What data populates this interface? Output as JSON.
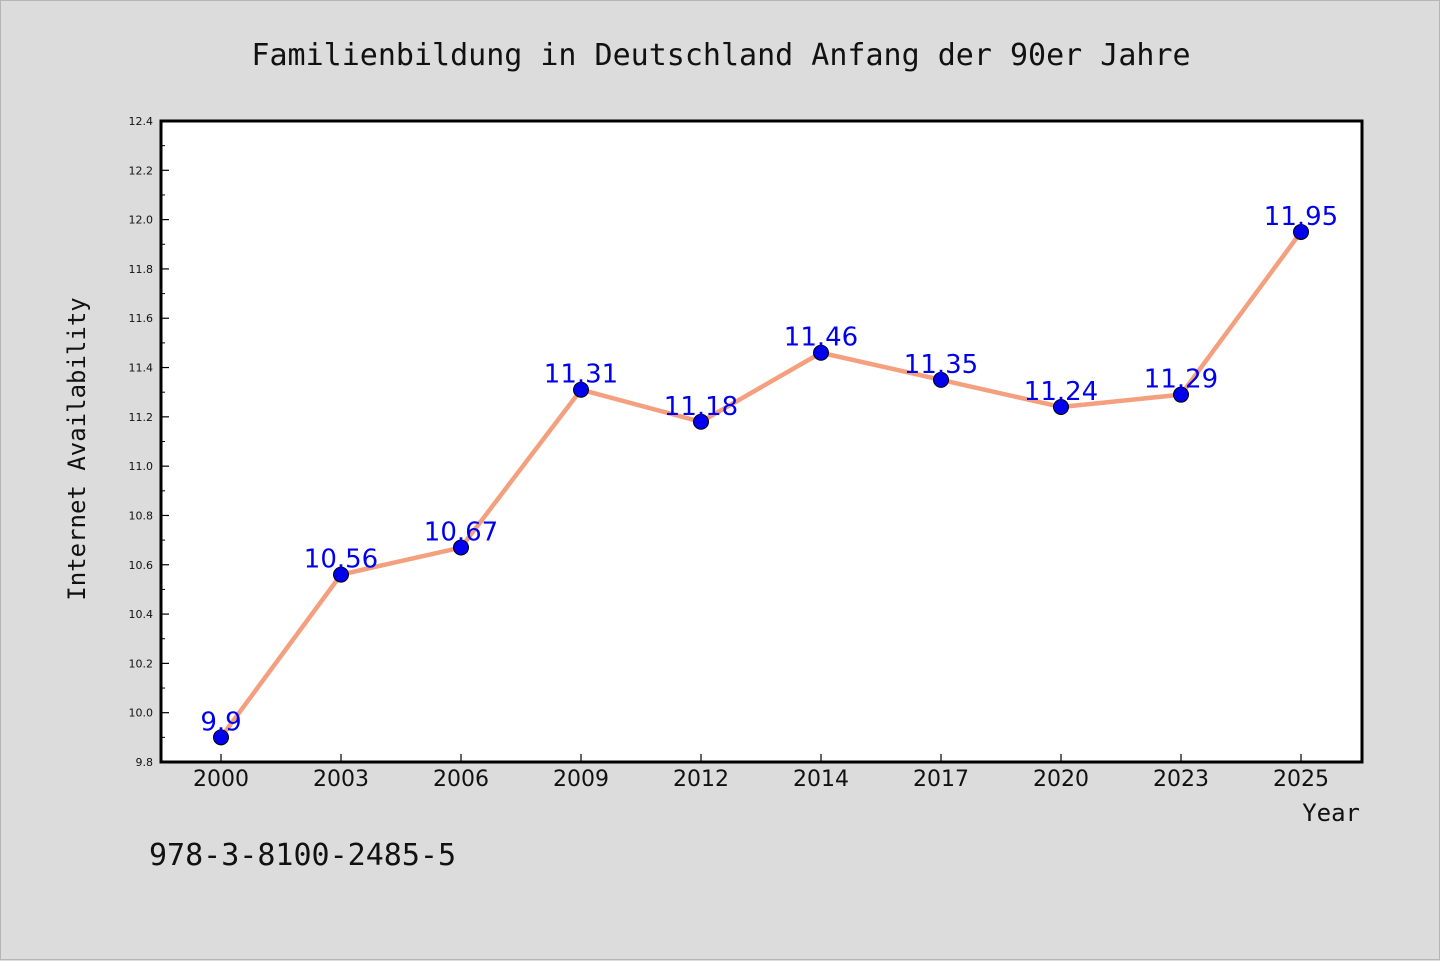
{
  "chart_data": {
    "type": "line",
    "title": "Familienbildung in Deutschland Anfang der 90er Jahre",
    "xlabel": "Year",
    "ylabel": "Internet Availability",
    "categories": [
      "2000",
      "2003",
      "2006",
      "2009",
      "2012",
      "2014",
      "2017",
      "2020",
      "2023",
      "2025"
    ],
    "series": [
      {
        "values": [
          9.9,
          10.56,
          10.67,
          11.31,
          11.18,
          11.46,
          11.35,
          11.24,
          11.29,
          11.95
        ],
        "labels": [
          "9.9",
          "10.56",
          "10.67",
          "11.31",
          "11.18",
          "11.46",
          "11.35",
          "11.24",
          "11.29",
          "11.95"
        ]
      }
    ],
    "ylim": [
      9.8,
      12.4
    ],
    "yticks": [
      "9.8",
      "10.0",
      "10.2",
      "10.4",
      "10.6",
      "10.8",
      "11.0",
      "11.2",
      "11.4",
      "11.6",
      "11.8",
      "12.0",
      "12.2",
      "12.4"
    ],
    "grid": false,
    "line_color": "#f4a07f",
    "marker_color": "#0000ee",
    "label_color": "#0000ee"
  },
  "footnote": "978-3-8100-2485-5"
}
